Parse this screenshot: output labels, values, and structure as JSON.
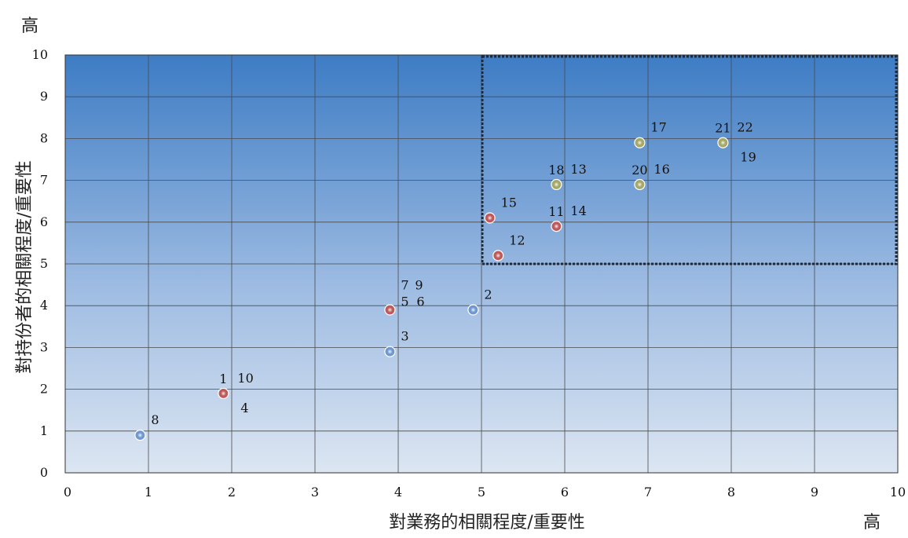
{
  "chart_data": {
    "type": "scatter",
    "title": "",
    "xlabel": "對業務的相關程度/重要性",
    "ylabel": "對持份者的相關程度/重要性",
    "x_high_label": "高",
    "y_high_label": "高",
    "xlim": [
      0,
      10
    ],
    "ylim": [
      0,
      10
    ],
    "x_ticks": [
      "0",
      "1",
      "2",
      "3",
      "4",
      "5",
      "6",
      "7",
      "8",
      "9",
      "10"
    ],
    "y_ticks": [
      "0",
      "1",
      "2",
      "3",
      "4",
      "5",
      "6",
      "7",
      "8",
      "9",
      "10"
    ],
    "grid": true,
    "highlight_region": {
      "x": [
        5,
        10
      ],
      "y": [
        5,
        10
      ],
      "style": "dotted"
    },
    "colors": {
      "bg_top": "#3d7cc4",
      "bg_bottom": "#dce6f2",
      "blue": "#6f98d2",
      "red": "#c0595a",
      "olive": "#a5a866"
    },
    "points": [
      {
        "x": 0.9,
        "y": 0.9,
        "color": "blue",
        "labels": [
          {
            "text": "8",
            "pos": "ur1"
          }
        ]
      },
      {
        "x": 1.9,
        "y": 1.9,
        "color": "red",
        "labels": [
          {
            "text": "1",
            "pos": "above"
          },
          {
            "text": "10",
            "pos": "ur2"
          },
          {
            "text": "4",
            "pos": "br"
          }
        ]
      },
      {
        "x": 3.9,
        "y": 2.9,
        "color": "blue",
        "labels": [
          {
            "text": "3",
            "pos": "ur1"
          }
        ]
      },
      {
        "x": 3.9,
        "y": 3.9,
        "color": "red",
        "labels": [
          {
            "text": "7",
            "pos": "r_hi"
          },
          {
            "text": "9",
            "pos": "r_hi2"
          },
          {
            "text": "5",
            "pos": "r_mid"
          },
          {
            "text": "6",
            "pos": "r_mid2"
          }
        ]
      },
      {
        "x": 4.9,
        "y": 3.9,
        "color": "blue",
        "labels": [
          {
            "text": "2",
            "pos": "ur1"
          }
        ]
      },
      {
        "x": 5.1,
        "y": 6.1,
        "color": "red",
        "labels": [
          {
            "text": "15",
            "pos": "ur1"
          }
        ]
      },
      {
        "x": 5.2,
        "y": 5.2,
        "color": "red",
        "labels": [
          {
            "text": "12",
            "pos": "ur1"
          }
        ]
      },
      {
        "x": 5.9,
        "y": 5.9,
        "color": "red",
        "labels": [
          {
            "text": "11",
            "pos": "above"
          },
          {
            "text": "14",
            "pos": "ur2"
          }
        ]
      },
      {
        "x": 5.9,
        "y": 6.9,
        "color": "olive",
        "labels": [
          {
            "text": "18",
            "pos": "above"
          },
          {
            "text": "13",
            "pos": "ur2"
          }
        ]
      },
      {
        "x": 6.9,
        "y": 6.9,
        "color": "olive",
        "labels": [
          {
            "text": "20",
            "pos": "above"
          },
          {
            "text": "16",
            "pos": "ur2"
          }
        ]
      },
      {
        "x": 6.9,
        "y": 7.9,
        "color": "olive",
        "labels": [
          {
            "text": "17",
            "pos": "ur1"
          }
        ]
      },
      {
        "x": 7.9,
        "y": 7.9,
        "color": "olive",
        "labels": [
          {
            "text": "21",
            "pos": "above"
          },
          {
            "text": "22",
            "pos": "ur2"
          },
          {
            "text": "19",
            "pos": "br"
          }
        ]
      }
    ]
  }
}
